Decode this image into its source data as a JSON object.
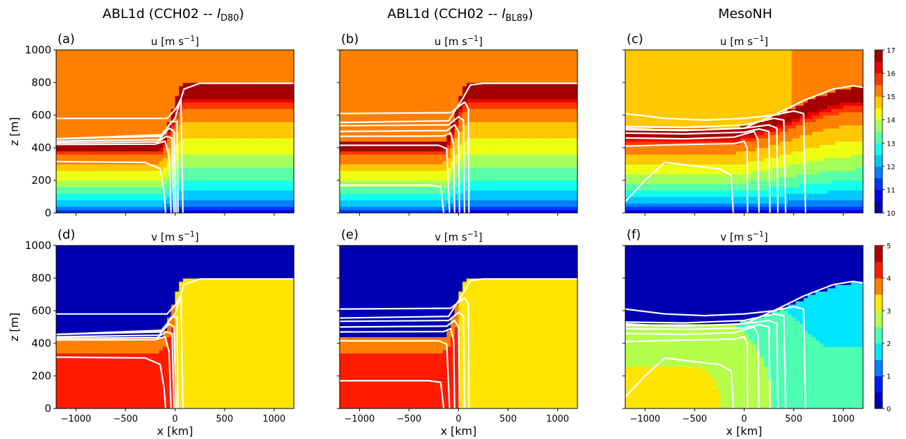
{
  "figure": {
    "column_titles": [
      {
        "main": "ABL1d (CCH02 -- ",
        "italic": "l",
        "sub": "D80",
        "end": ")"
      },
      {
        "main": "ABL1d (CCH02 -- ",
        "italic": "l",
        "sub": "BL89",
        "end": ")"
      },
      {
        "main": "MesoNH",
        "italic": "",
        "sub": "",
        "end": ""
      }
    ]
  },
  "chart_data": [
    {
      "panel_label": "(a)",
      "type": "heatmap",
      "title": "u [m s",
      "title_exp": "−1",
      "title_end": "]",
      "variable": "u",
      "model": "ABL1d-D80",
      "xlabel": "",
      "ylabel": "z [m]",
      "xlim": [
        -1200,
        1200
      ],
      "ylim": [
        0,
        1000
      ],
      "xticks": [],
      "yticks": [
        0,
        200,
        400,
        600,
        800,
        1000
      ],
      "colorbar": null
    },
    {
      "panel_label": "(b)",
      "type": "heatmap",
      "title": "u [m s",
      "title_exp": "−1",
      "title_end": "]",
      "variable": "u",
      "model": "ABL1d-BL89",
      "xlabel": "",
      "ylabel": "",
      "xlim": [
        -1200,
        1200
      ],
      "ylim": [
        0,
        1000
      ],
      "xticks": [],
      "yticks": [],
      "colorbar": null
    },
    {
      "panel_label": "(c)",
      "type": "heatmap",
      "title": "u [m s",
      "title_exp": "−1",
      "title_end": "]",
      "variable": "u",
      "model": "MesoNH",
      "xlabel": "",
      "ylabel": "",
      "xlim": [
        -1200,
        1200
      ],
      "ylim": [
        0,
        1000
      ],
      "xticks": [],
      "yticks": [],
      "colorbar": {
        "min": 10,
        "max": 17,
        "ticks": [
          10,
          11,
          12,
          13,
          14,
          15,
          16,
          17
        ],
        "levels": 14,
        "colormap": "jet"
      }
    },
    {
      "panel_label": "(d)",
      "type": "heatmap",
      "title": "v [m s",
      "title_exp": "−1",
      "title_end": "]",
      "variable": "v",
      "model": "ABL1d-D80",
      "xlabel": "x [km]",
      "ylabel": "z [m]",
      "xlim": [
        -1200,
        1200
      ],
      "ylim": [
        0,
        1000
      ],
      "xticks": [
        -1000,
        -500,
        0,
        500,
        1000
      ],
      "yticks": [
        0,
        200,
        400,
        600,
        800,
        1000
      ],
      "colorbar": null
    },
    {
      "panel_label": "(e)",
      "type": "heatmap",
      "title": "v [m s",
      "title_exp": "−1",
      "title_end": "]",
      "variable": "v",
      "model": "ABL1d-BL89",
      "xlabel": "x [km]",
      "ylabel": "",
      "xlim": [
        -1200,
        1200
      ],
      "ylim": [
        0,
        1000
      ],
      "xticks": [
        -1000,
        -500,
        0,
        500,
        1000
      ],
      "yticks": [],
      "colorbar": null
    },
    {
      "panel_label": "(f)",
      "type": "heatmap",
      "title": "v [m s",
      "title_exp": "−1",
      "title_end": "]",
      "variable": "v",
      "model": "MesoNH",
      "xlabel": "x [km]",
      "ylabel": "",
      "xlim": [
        -1200,
        1200
      ],
      "ylim": [
        0,
        1000
      ],
      "xticks": [
        -1000,
        -500,
        0,
        500,
        1000
      ],
      "yticks": [],
      "colorbar": {
        "min": 0,
        "max": 5,
        "ticks": [
          0,
          1,
          2,
          3,
          4,
          5
        ],
        "levels": 10,
        "colormap": "jet"
      }
    }
  ],
  "contours": {
    "ABL1d-D80": [
      [
        [
          -1200,
          315
        ],
        [
          -300,
          310
        ],
        [
          -150,
          270
        ],
        [
          -110,
          120
        ],
        [
          -95,
          0
        ]
      ],
      [
        [
          -1200,
          420
        ],
        [
          -200,
          422
        ],
        [
          -100,
          440
        ],
        [
          -60,
          350
        ],
        [
          -40,
          0
        ]
      ],
      [
        [
          -1200,
          430
        ],
        [
          -180,
          435
        ],
        [
          -90,
          470
        ],
        [
          -30,
          460
        ],
        [
          -10,
          0
        ]
      ],
      [
        [
          -1200,
          440
        ],
        [
          -160,
          450
        ],
        [
          -60,
          520
        ],
        [
          -10,
          500
        ],
        [
          10,
          0
        ]
      ],
      [
        [
          -1200,
          455
        ],
        [
          -120,
          480
        ],
        [
          -40,
          560
        ],
        [
          20,
          560
        ],
        [
          30,
          0
        ]
      ],
      [
        [
          -1200,
          580
        ],
        [
          -80,
          580
        ],
        [
          10,
          640
        ],
        [
          60,
          700
        ],
        [
          80,
          0
        ]
      ],
      [
        [
          -1200,
          455
        ],
        [
          -150,
          470
        ],
        [
          0,
          580
        ],
        [
          90,
          760
        ],
        [
          250,
          795
        ],
        [
          1200,
          795
        ]
      ]
    ],
    "ABL1d-BL89": [
      [
        [
          -1200,
          170
        ],
        [
          -300,
          170
        ],
        [
          -180,
          160
        ],
        [
          -150,
          0
        ]
      ],
      [
        [
          -1200,
          415
        ],
        [
          -200,
          415
        ],
        [
          -120,
          395
        ],
        [
          -90,
          0
        ]
      ],
      [
        [
          -1200,
          470
        ],
        [
          -150,
          472
        ],
        [
          -80,
          490
        ],
        [
          -50,
          420
        ],
        [
          -40,
          0
        ]
      ],
      [
        [
          -1200,
          500
        ],
        [
          -120,
          505
        ],
        [
          -40,
          540
        ],
        [
          0,
          500
        ],
        [
          10,
          0
        ]
      ],
      [
        [
          -1200,
          535
        ],
        [
          -100,
          540
        ],
        [
          0,
          590
        ],
        [
          50,
          570
        ],
        [
          60,
          0
        ]
      ],
      [
        [
          -1200,
          610
        ],
        [
          -80,
          615
        ],
        [
          60,
          680
        ],
        [
          100,
          640
        ],
        [
          105,
          0
        ]
      ],
      [
        [
          -1200,
          555
        ],
        [
          -100,
          565
        ],
        [
          40,
          700
        ],
        [
          120,
          785
        ],
        [
          250,
          795
        ],
        [
          1200,
          795
        ]
      ]
    ],
    "MesoNH": [
      [
        [
          -1200,
          70
        ],
        [
          -1000,
          200
        ],
        [
          -800,
          310
        ],
        [
          -600,
          295
        ],
        [
          -250,
          270
        ],
        [
          -130,
          230
        ],
        [
          -110,
          0
        ]
      ],
      [
        [
          -1200,
          410
        ],
        [
          -600,
          420
        ],
        [
          -100,
          425
        ],
        [
          0,
          440
        ],
        [
          30,
          400
        ],
        [
          35,
          0
        ]
      ],
      [
        [
          -1200,
          460
        ],
        [
          -600,
          455
        ],
        [
          -100,
          465
        ],
        [
          100,
          500
        ],
        [
          140,
          450
        ],
        [
          150,
          0
        ]
      ],
      [
        [
          -1200,
          490
        ],
        [
          -600,
          485
        ],
        [
          0,
          495
        ],
        [
          150,
          515
        ],
        [
          250,
          500
        ],
        [
          260,
          0
        ]
      ],
      [
        [
          -1200,
          510
        ],
        [
          -600,
          505
        ],
        [
          0,
          520
        ],
        [
          250,
          540
        ],
        [
          330,
          520
        ],
        [
          340,
          0
        ]
      ],
      [
        [
          -1200,
          530
        ],
        [
          -600,
          525
        ],
        [
          0,
          540
        ],
        [
          300,
          580
        ],
        [
          400,
          570
        ],
        [
          420,
          0
        ]
      ],
      [
        [
          -1200,
          610
        ],
        [
          -800,
          580
        ],
        [
          -400,
          570
        ],
        [
          0,
          580
        ],
        [
          300,
          600
        ],
        [
          500,
          625
        ],
        [
          600,
          610
        ],
        [
          620,
          0
        ]
      ],
      [
        [
          -1200,
          520
        ],
        [
          -900,
          510
        ],
        [
          -400,
          510
        ],
        [
          0,
          520
        ],
        [
          300,
          600
        ],
        [
          600,
          690
        ],
        [
          900,
          760
        ],
        [
          1100,
          780
        ],
        [
          1200,
          770
        ]
      ]
    ]
  }
}
